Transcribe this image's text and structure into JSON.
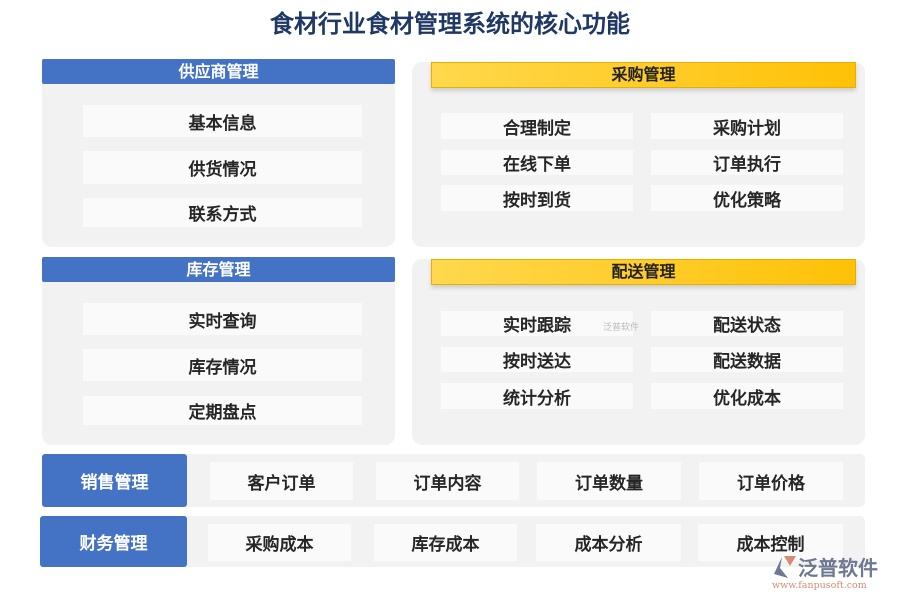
{
  "title": "食材行业食材管理系统的核心功能",
  "supplier": {
    "header": "供应商管理",
    "items": [
      "基本信息",
      "供货情况",
      "联系方式"
    ]
  },
  "inventory": {
    "header": "库存管理",
    "items": [
      "实时查询",
      "库存情况",
      "定期盘点"
    ]
  },
  "purchase": {
    "header": "采购管理",
    "items": [
      "合理制定",
      "采购计划",
      "在线下单",
      "订单执行",
      "按时到货",
      "优化策略"
    ]
  },
  "delivery": {
    "header": "配送管理",
    "items": [
      "实时跟踪",
      "配送状态",
      "按时送达",
      "配送数据",
      "统计分析",
      "优化成本"
    ]
  },
  "sales": {
    "label": "销售管理",
    "items": [
      "客户订单",
      "订单内容",
      "订单数量",
      "订单价格"
    ]
  },
  "finance": {
    "label": "财务管理",
    "items": [
      "采购成本",
      "库存成本",
      "成本分析",
      "成本控制"
    ]
  },
  "watermark": "泛普软件",
  "logo": {
    "name": "泛普软件",
    "url": "www.fanpusoft.com"
  },
  "colors": {
    "blue": "#4472c4",
    "yellow": "#ffc107",
    "title": "#1f3864"
  }
}
